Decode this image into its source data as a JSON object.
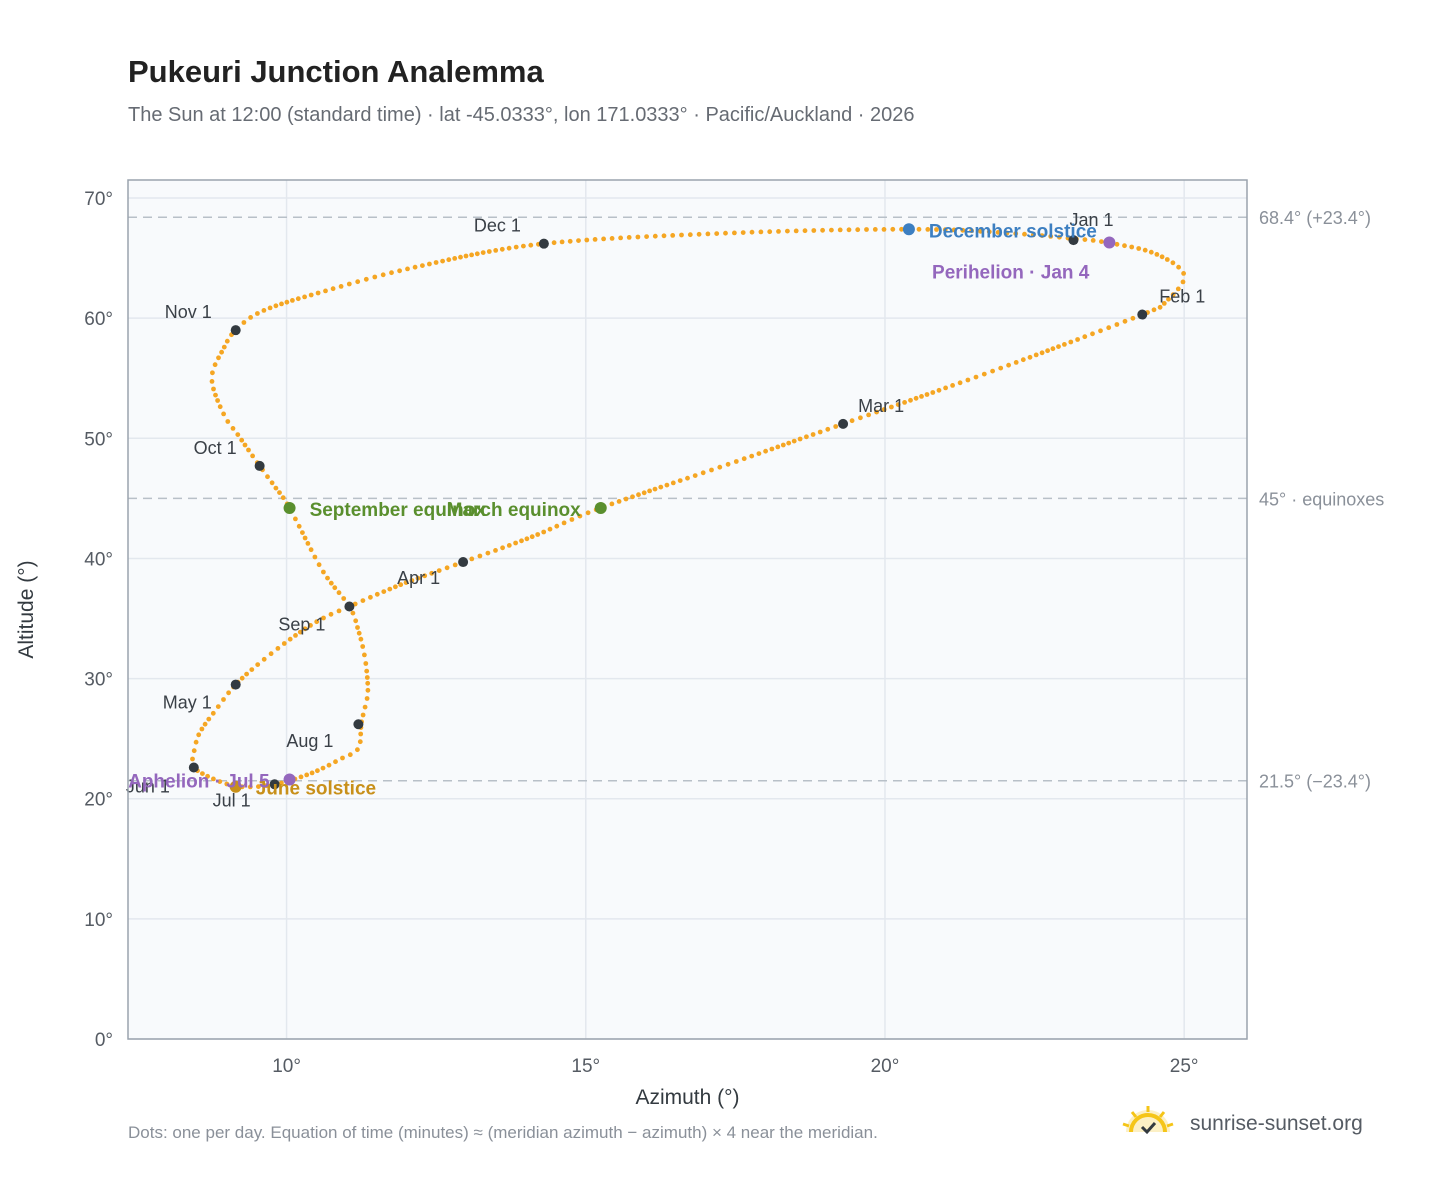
{
  "header": {
    "title": "Pukeuri Junction Analemma",
    "subtitle": "The Sun at 12:00 (standard time) · lat -45.0333°, lon 171.0333° · Pacific/Auckland · 2026"
  },
  "footer": {
    "note": "Dots: one per day. Equation of time (minutes) ≈ (meridian azimuth − azimuth) × 4 near the meridian.",
    "brand": "sunrise-sunset.org"
  },
  "colors": {
    "curve": "#f5a623",
    "month_marker": "#333a40",
    "equinox": "#5a8f2e",
    "december_solstice": "#3d7fc1",
    "june_solstice": "#c8901a",
    "apsis": "#9467bd",
    "reference_line": "#b8c0c8",
    "plot_bg": "#f8fafc"
  },
  "chart_data": {
    "type": "scatter",
    "xlabel": "Azimuth (°)",
    "ylabel": "Altitude (°)",
    "xlim": [
      7.35,
      26.05
    ],
    "ylim": [
      0,
      71.5
    ],
    "xticks": [
      10,
      15,
      20,
      25
    ],
    "xtick_labels": [
      "10°",
      "15°",
      "20°",
      "25°"
    ],
    "yticks": [
      0,
      10,
      20,
      30,
      40,
      50,
      60,
      70
    ],
    "ytick_labels": [
      "0°",
      "10°",
      "20°",
      "30°",
      "40°",
      "50°",
      "60°",
      "70°"
    ],
    "grid": true,
    "reference_lines": [
      {
        "y": 68.4,
        "label": "68.4° (+23.4°)"
      },
      {
        "y": 45.0,
        "label": "45° · equinoxes"
      },
      {
        "y": 21.5,
        "label": "21.5° (−23.4°)"
      }
    ],
    "path_waypoints": [
      {
        "x": 23.2,
        "y": 66.6
      },
      {
        "x": 23.7,
        "y": 66.3
      },
      {
        "x": 24.5,
        "y": 65.4
      },
      {
        "x": 25.0,
        "y": 63.6
      },
      {
        "x": 24.7,
        "y": 61.4
      },
      {
        "x": 24.3,
        "y": 60.3
      },
      {
        "x": 21.8,
        "y": 55.6
      },
      {
        "x": 19.3,
        "y": 51.2
      },
      {
        "x": 17.3,
        "y": 47.7
      },
      {
        "x": 15.25,
        "y": 44.2
      },
      {
        "x": 14.1,
        "y": 41.8
      },
      {
        "x": 12.95,
        "y": 39.7
      },
      {
        "x": 11.9,
        "y": 37.8
      },
      {
        "x": 11.05,
        "y": 36.0
      },
      {
        "x": 10.6,
        "y": 35.0
      },
      {
        "x": 10.15,
        "y": 33.6
      },
      {
        "x": 9.6,
        "y": 31.5
      },
      {
        "x": 9.15,
        "y": 29.5
      },
      {
        "x": 8.85,
        "y": 27.6
      },
      {
        "x": 8.55,
        "y": 25.5
      },
      {
        "x": 8.45,
        "y": 23.8
      },
      {
        "x": 8.45,
        "y": 22.6
      },
      {
        "x": 8.8,
        "y": 21.6
      },
      {
        "x": 9.15,
        "y": 21.05
      },
      {
        "x": 9.5,
        "y": 21.0
      },
      {
        "x": 9.8,
        "y": 21.2
      },
      {
        "x": 10.05,
        "y": 21.5
      },
      {
        "x": 10.5,
        "y": 22.3
      },
      {
        "x": 10.9,
        "y": 23.3
      },
      {
        "x": 11.2,
        "y": 24.2
      },
      {
        "x": 11.25,
        "y": 26.3
      },
      {
        "x": 11.35,
        "y": 28.5
      },
      {
        "x": 11.35,
        "y": 30.0
      },
      {
        "x": 11.3,
        "y": 32.0
      },
      {
        "x": 11.2,
        "y": 34.0
      },
      {
        "x": 11.05,
        "y": 36.0
      },
      {
        "x": 10.6,
        "y": 39.0
      },
      {
        "x": 10.05,
        "y": 44.2
      },
      {
        "x": 9.8,
        "y": 46.0
      },
      {
        "x": 9.55,
        "y": 47.7
      },
      {
        "x": 9.2,
        "y": 50.2
      },
      {
        "x": 8.95,
        "y": 52.0
      },
      {
        "x": 8.75,
        "y": 55.0
      },
      {
        "x": 8.95,
        "y": 57.5
      },
      {
        "x": 9.15,
        "y": 59.0
      },
      {
        "x": 9.6,
        "y": 60.6
      },
      {
        "x": 10.6,
        "y": 62.2
      },
      {
        "x": 12.2,
        "y": 64.3
      },
      {
        "x": 14.3,
        "y": 66.2
      },
      {
        "x": 17.5,
        "y": 67.1
      },
      {
        "x": 20.4,
        "y": 67.4
      },
      {
        "x": 22.0,
        "y": 67.1
      },
      {
        "x": 23.2,
        "y": 66.6
      }
    ],
    "month_markers": [
      {
        "label": "Jan 1",
        "x": 23.15,
        "y": 66.5
      },
      {
        "label": "Feb 1",
        "x": 24.3,
        "y": 60.3
      },
      {
        "label": "Mar 1",
        "x": 19.3,
        "y": 51.2
      },
      {
        "label": "Apr 1",
        "x": 12.95,
        "y": 39.7
      },
      {
        "label": "May 1",
        "x": 9.15,
        "y": 29.5
      },
      {
        "label": "Jun 1",
        "x": 8.45,
        "y": 22.6
      },
      {
        "label": "Jul 1",
        "x": 9.8,
        "y": 21.2
      },
      {
        "label": "Aug 1",
        "x": 11.2,
        "y": 26.2
      },
      {
        "label": "Sep 1",
        "x": 11.05,
        "y": 36.0
      },
      {
        "label": "Oct 1",
        "x": 9.55,
        "y": 47.7
      },
      {
        "label": "Nov 1",
        "x": 9.15,
        "y": 59.0
      },
      {
        "label": "Dec 1",
        "x": 14.3,
        "y": 66.2
      }
    ],
    "events": [
      {
        "label": "March equinox",
        "x": 15.25,
        "y": 44.2,
        "kind": "equinox"
      },
      {
        "label": "September equinox",
        "x": 10.05,
        "y": 44.2,
        "kind": "equinox"
      },
      {
        "label": "December solstice",
        "x": 20.4,
        "y": 67.4,
        "kind": "december_solstice"
      },
      {
        "label": "June solstice",
        "x": 9.15,
        "y": 21.0,
        "kind": "june_solstice"
      },
      {
        "label": "Perihelion · Jan 4",
        "x": 23.75,
        "y": 66.3,
        "kind": "apsis"
      },
      {
        "label": "Aphelion · Jul 5",
        "x": 10.05,
        "y": 21.6,
        "kind": "apsis"
      }
    ]
  }
}
